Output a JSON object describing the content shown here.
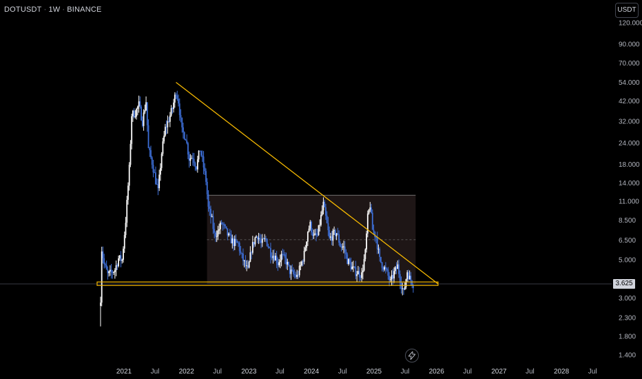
{
  "header": {
    "symbol": "DOTUSDT",
    "interval": "1W",
    "exchange": "BINANCE",
    "separator": "·"
  },
  "toolbar": {
    "currency_button": "USDT"
  },
  "price_badge": "3.625",
  "colors": {
    "background": "#000000",
    "candle_up": "#ffffff",
    "candle_down": "#3d6fd8",
    "trendline": "#f5b800",
    "range_fill": "#1e1616",
    "range_border": "#8f8f8f",
    "text": "#d1d4dc"
  },
  "icons": {
    "bolt": "lightning-icon"
  },
  "chart_data": {
    "type": "candlestick",
    "title": "DOTUSDT · 1W · BINANCE",
    "y_scale": "log",
    "ylim": [
      1.25,
      130
    ],
    "xlim": [
      "2020-08-17",
      "2028-08-01"
    ],
    "y_ticks": [
      "120.000",
      "90.000",
      "70.000",
      "54.000",
      "42.000",
      "32.000",
      "24.000",
      "18.000",
      "14.000",
      "11.000",
      "8.500",
      "6.500",
      "5.000",
      "3.000",
      "2.300",
      "1.800",
      "1.400"
    ],
    "x_ticks": [
      {
        "label": "2021",
        "date": "2021-01-01"
      },
      {
        "label": "Jul",
        "date": "2021-07-01"
      },
      {
        "label": "2022",
        "date": "2022-01-01"
      },
      {
        "label": "Jul",
        "date": "2022-07-01"
      },
      {
        "label": "2023",
        "date": "2023-01-01"
      },
      {
        "label": "Jul",
        "date": "2023-07-01"
      },
      {
        "label": "2024",
        "date": "2024-01-01"
      },
      {
        "label": "Jul",
        "date": "2024-07-01"
      },
      {
        "label": "2025",
        "date": "2025-01-01"
      },
      {
        "label": "Jul",
        "date": "2025-07-01"
      },
      {
        "label": "2026",
        "date": "2026-01-01"
      },
      {
        "label": "Jul",
        "date": "2026-07-01"
      },
      {
        "label": "2027",
        "date": "2027-01-01"
      },
      {
        "label": "Jul",
        "date": "2027-07-01"
      },
      {
        "label": "2028",
        "date": "2028-01-01"
      },
      {
        "label": "Jul",
        "date": "2028-07-01"
      }
    ],
    "current_price": 3.625,
    "price_path": [
      [
        "2020-08-17",
        3.0
      ],
      [
        "2020-08-24",
        5.8
      ],
      [
        "2020-09-07",
        4.7
      ],
      [
        "2020-09-28",
        4.1
      ],
      [
        "2020-10-19",
        4.2
      ],
      [
        "2020-11-09",
        4.4
      ],
      [
        "2020-11-30",
        5.1
      ],
      [
        "2020-12-21",
        5.0
      ],
      [
        "2021-01-11",
        8.5
      ],
      [
        "2021-02-01",
        17.0
      ],
      [
        "2021-02-15",
        35.0
      ],
      [
        "2021-03-08",
        36.0
      ],
      [
        "2021-03-29",
        40.0
      ],
      [
        "2021-04-19",
        32.0
      ],
      [
        "2021-05-10",
        42.0
      ],
      [
        "2021-05-24",
        22.0
      ],
      [
        "2021-06-14",
        18.5
      ],
      [
        "2021-07-05",
        14.5
      ],
      [
        "2021-07-19",
        12.5
      ],
      [
        "2021-08-09",
        21.0
      ],
      [
        "2021-08-30",
        29.0
      ],
      [
        "2021-09-20",
        33.0
      ],
      [
        "2021-10-11",
        38.0
      ],
      [
        "2021-11-01",
        48.0
      ],
      [
        "2021-11-15",
        42.0
      ],
      [
        "2021-12-06",
        28.0
      ],
      [
        "2021-12-27",
        26.0
      ],
      [
        "2022-01-17",
        19.5
      ],
      [
        "2022-02-07",
        20.0
      ],
      [
        "2022-02-28",
        17.5
      ],
      [
        "2022-03-21",
        22.0
      ],
      [
        "2022-04-04",
        19.0
      ],
      [
        "2022-04-25",
        14.5
      ],
      [
        "2022-05-09",
        10.0
      ],
      [
        "2022-05-30",
        8.5
      ],
      [
        "2022-06-13",
        7.0
      ],
      [
        "2022-07-04",
        7.3
      ],
      [
        "2022-07-25",
        8.2
      ],
      [
        "2022-08-15",
        7.5
      ],
      [
        "2022-09-05",
        6.8
      ],
      [
        "2022-10-03",
        6.3
      ],
      [
        "2022-10-31",
        6.2
      ],
      [
        "2022-11-14",
        5.4
      ],
      [
        "2022-12-12",
        4.6
      ],
      [
        "2022-12-26",
        4.3
      ],
      [
        "2023-01-16",
        5.8
      ],
      [
        "2023-02-06",
        6.7
      ],
      [
        "2023-02-20",
        7.0
      ],
      [
        "2023-03-13",
        6.2
      ],
      [
        "2023-04-10",
        6.6
      ],
      [
        "2023-05-08",
        5.5
      ],
      [
        "2023-06-05",
        5.2
      ],
      [
        "2023-06-19",
        4.8
      ],
      [
        "2023-07-10",
        5.3
      ],
      [
        "2023-08-07",
        4.9
      ],
      [
        "2023-08-28",
        4.3
      ],
      [
        "2023-09-18",
        4.1
      ],
      [
        "2023-10-09",
        4.0
      ],
      [
        "2023-10-30",
        4.6
      ],
      [
        "2023-11-20",
        5.4
      ],
      [
        "2023-12-11",
        7.4
      ],
      [
        "2023-12-25",
        8.0
      ],
      [
        "2024-01-15",
        6.8
      ],
      [
        "2024-02-05",
        6.9
      ],
      [
        "2024-02-26",
        8.9
      ],
      [
        "2024-03-11",
        10.5
      ],
      [
        "2024-03-25",
        8.8
      ],
      [
        "2024-04-15",
        6.6
      ],
      [
        "2024-05-06",
        7.0
      ],
      [
        "2024-05-27",
        7.2
      ],
      [
        "2024-06-17",
        6.1
      ],
      [
        "2024-07-08",
        5.9
      ],
      [
        "2024-07-29",
        5.0
      ],
      [
        "2024-08-19",
        4.6
      ],
      [
        "2024-09-09",
        4.3
      ],
      [
        "2024-09-30",
        4.2
      ],
      [
        "2024-10-21",
        4.1
      ],
      [
        "2024-11-11",
        5.5
      ],
      [
        "2024-11-25",
        8.8
      ],
      [
        "2024-12-09",
        10.5
      ],
      [
        "2024-12-23",
        7.5
      ],
      [
        "2025-01-13",
        6.8
      ],
      [
        "2025-02-03",
        5.0
      ],
      [
        "2025-02-24",
        4.6
      ],
      [
        "2025-03-17",
        4.2
      ],
      [
        "2025-04-07",
        3.7
      ],
      [
        "2025-04-28",
        4.2
      ],
      [
        "2025-05-19",
        4.6
      ],
      [
        "2025-06-09",
        3.6
      ],
      [
        "2025-06-23",
        3.2
      ],
      [
        "2025-07-14",
        4.3
      ],
      [
        "2025-07-28",
        3.9
      ],
      [
        "2025-08-18",
        3.625
      ]
    ],
    "annotations": {
      "downtrend_line": {
        "from": [
          "2021-11-01",
          54.0
        ],
        "to": [
          "2026-01-10",
          3.625
        ],
        "color": "#f5b800"
      },
      "support_band": {
        "from": "2020-08-17",
        "to": "2026-01-10",
        "low": 3.55,
        "high": 3.72,
        "color": "#f5b800"
      },
      "range_box": {
        "from": "2022-05-01",
        "to": "2025-09-01",
        "low": 3.62,
        "high": 11.9,
        "mid": 6.55
      }
    }
  }
}
